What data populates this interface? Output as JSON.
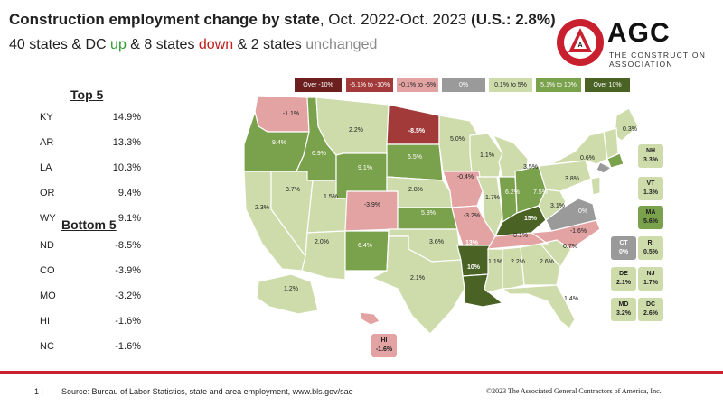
{
  "title_bold": "Construction employment change by state",
  "title_rest": ", Oct. 2022-Oct. 2023 ",
  "title_us": "(U.S.: 2.8%)",
  "subtitle": {
    "part1": "40 states & DC ",
    "up": "up",
    "part2": " & 8 states ",
    "down": "down",
    "part3": " & 2 states ",
    "unchanged": "unchanged"
  },
  "logo": {
    "name": "AGC",
    "sub1": "THE CONSTRUCTION",
    "sub2": "ASSOCIATION",
    "seal_text": "ASSOCIATED GENERAL CONTRACTORS OF AMERICA"
  },
  "colors": {
    "over_minus10": "#6b1f1f",
    "minus5_to_minus10": "#a33a3a",
    "minus01_to_minus5": "#e3a3a3",
    "zero": "#9a9a9a",
    "plus01_to_5": "#cddcaa",
    "plus5_to_10": "#7aa14b",
    "over10": "#4a6325"
  },
  "legend": [
    {
      "label": "Over -10%",
      "color": "#6b1f1f",
      "text_color": "#ffffff"
    },
    {
      "label": "-5.1% to -10%",
      "color": "#a33a3a",
      "text_color": "#ffffff"
    },
    {
      "label": "-0.1% to -5%",
      "color": "#e3a3a3",
      "text_color": "#222222"
    },
    {
      "label": "0%",
      "color": "#9a9a9a",
      "text_color": "#ffffff"
    },
    {
      "label": "0.1% to 5%",
      "color": "#cddcaa",
      "text_color": "#222222"
    },
    {
      "label": "5.1% to 10%",
      "color": "#7aa14b",
      "text_color": "#ffffff"
    },
    {
      "label": "Over 10%",
      "color": "#4a6325",
      "text_color": "#ffffff"
    }
  ],
  "top5": {
    "heading": "Top 5",
    "rows": [
      {
        "state": "KY",
        "value": "14.9%"
      },
      {
        "state": "AR",
        "value": "13.3%"
      },
      {
        "state": "LA",
        "value": "10.3%"
      },
      {
        "state": "OR",
        "value": "9.4%"
      },
      {
        "state": "WY",
        "value": "9.1%"
      }
    ]
  },
  "bottom5": {
    "heading": "Bottom 5",
    "rows": [
      {
        "state": "ND",
        "value": "-8.5%"
      },
      {
        "state": "CO",
        "value": "-3.9%"
      },
      {
        "state": "MO",
        "value": "-3.2%"
      },
      {
        "state": "HI",
        "value": "-1.6%"
      },
      {
        "state": "NC",
        "value": "-1.6%"
      }
    ]
  },
  "map_labels": {
    "WA": "-1.1%",
    "OR": "9.4%",
    "ID": "6.9%",
    "MT": "2.2%",
    "ND": "-8.5%",
    "MN": "5.0%",
    "WI": "1.1%",
    "MI": "3.5%",
    "NY": "0.6%",
    "ME": "0.3%",
    "CA": "2.3%",
    "NV": "3.7%",
    "UT": "1.5%",
    "WY": "9.1%",
    "SD": "6.5%",
    "IA": "-0.4%",
    "IL": "1.7%",
    "IN": "6.2%",
    "OH": "7.5%",
    "PA": "3.8%",
    "CO": "-3.9%",
    "NE": "2.8%",
    "KS": "5.8%",
    "MO": "-3.2%",
    "KY": "15%",
    "WV": "3.1%",
    "VA": "0%",
    "AZ": "2.0%",
    "NM": "6.4%",
    "OK": "3.6%",
    "AR": "13%",
    "TN": "-0.1%",
    "NC": "-1.6%",
    "SC": "0.7%",
    "TX": "2.1%",
    "LA": "10%",
    "MS": "1.1%",
    "AL": "2.2%",
    "GA": "2.6%",
    "FL": "1.4%",
    "AK": "1.2%"
  },
  "side_boxes": [
    {
      "state": "NH",
      "value": "3.3%"
    },
    {
      "state": "VT",
      "value": "1.3%"
    },
    {
      "state": "MA",
      "value": "5.6%"
    },
    {
      "state": "CT",
      "value": "0%"
    },
    {
      "state": "RI",
      "value": "0.5%"
    },
    {
      "state": "DE",
      "value": "2.1%"
    },
    {
      "state": "NJ",
      "value": "1.7%"
    },
    {
      "state": "MD",
      "value": "3.2%"
    },
    {
      "state": "DC",
      "value": "2.6%"
    },
    {
      "state": "HI",
      "value": "-1.6%"
    }
  ],
  "footer": {
    "page": "1 |",
    "source": "Source: Bureau of Labor Statistics, state and area employment, www.bls.gov/sae",
    "copyright": "©2023 The Associated General Contractors of America, Inc."
  }
}
